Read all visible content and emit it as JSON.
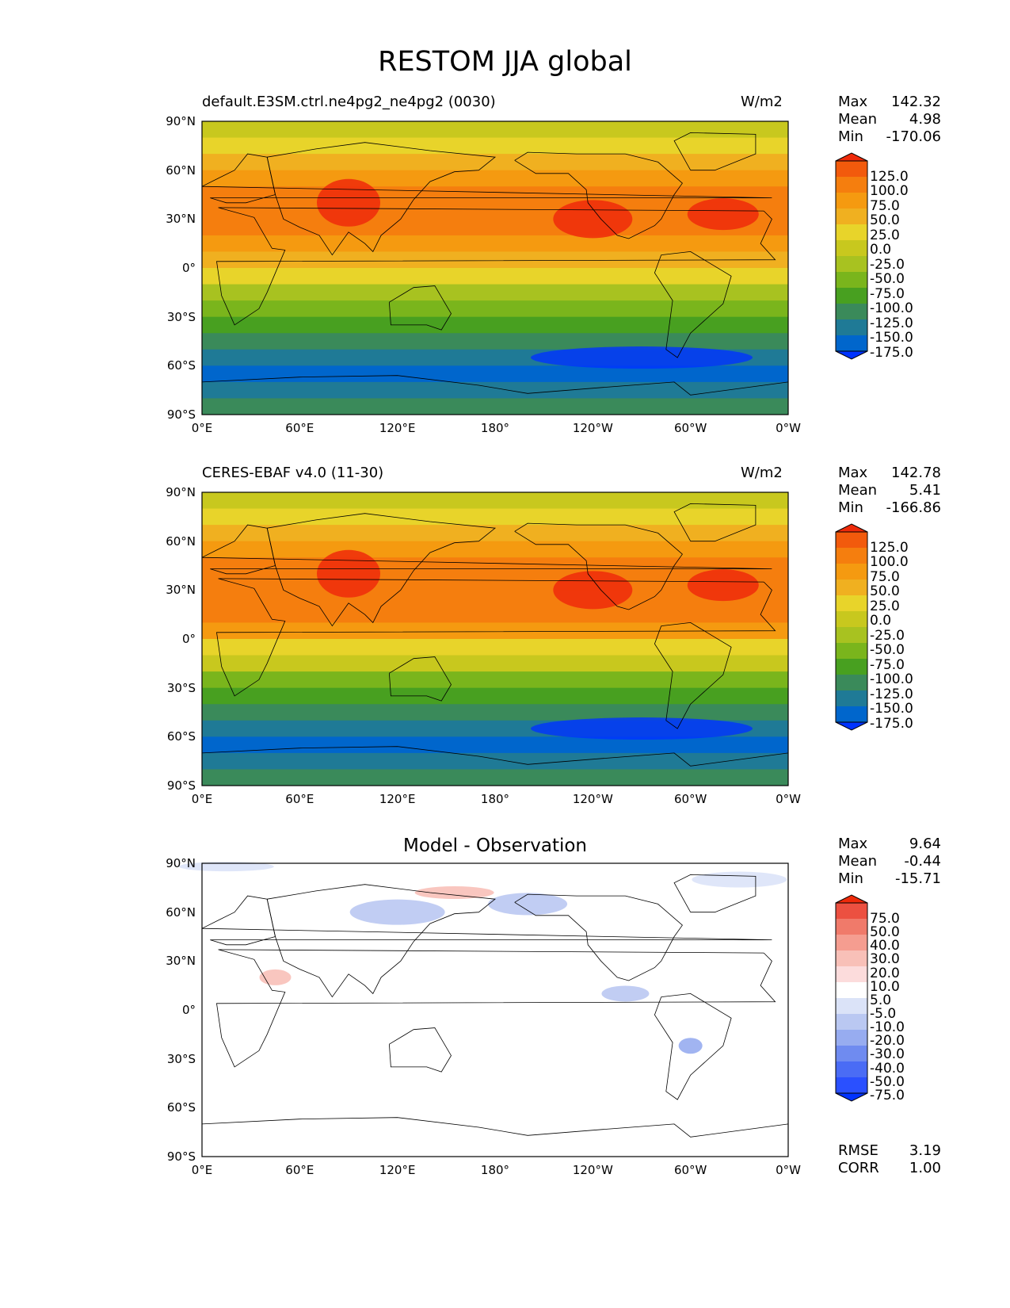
{
  "title": "RESTOM JJA global",
  "x_ticks": [
    "0°E",
    "60°E",
    "120°E",
    "180°",
    "120°W",
    "60°W",
    "0°W"
  ],
  "y_ticks": [
    "90°N",
    "60°N",
    "30°N",
    "0°",
    "30°S",
    "60°S",
    "90°S"
  ],
  "colors": {
    "abs_levels": [
      "#0033ff",
      "#0066cc",
      "#1f7a96",
      "#3a8a5a",
      "#48a020",
      "#7ab51c",
      "#a8c220",
      "#c8c81e",
      "#e8d42a",
      "#f0b020",
      "#f59a10",
      "#f57e0e",
      "#f25a0c",
      "#ee2a0a"
    ],
    "diff_levels": [
      "#0033ff",
      "#2a50ff",
      "#4a6cf5",
      "#6f8bf0",
      "#97acf0",
      "#bac8f2",
      "#dbe3f8",
      "#ffffff",
      "#fcdcdc",
      "#f8c0b8",
      "#f59d90",
      "#f07a6a",
      "#ec5040",
      "#ee2a0a"
    ]
  },
  "chart_data": [
    {
      "type": "heatmap",
      "label_left": "default.E3SM.ctrl.ne4pg2_ne4pg2 (0030)",
      "label_right": "W/m2",
      "stats": [
        {
          "name": "Max",
          "value": "142.32"
        },
        {
          "name": "Mean",
          "value": "4.98"
        },
        {
          "name": "Min",
          "value": "-170.06"
        }
      ],
      "colorbar_ticks": [
        "125.0",
        "100.0",
        "75.0",
        "50.0",
        "25.0",
        "0.0",
        "-25.0",
        "-50.0",
        "-75.0",
        "-100.0",
        "-125.0",
        "-150.0",
        "-175.0"
      ],
      "xlim": [
        0,
        360
      ],
      "ylim": [
        -90,
        90
      ],
      "zonal_profile": {
        "lat": [
          90,
          80,
          70,
          60,
          50,
          40,
          30,
          20,
          10,
          0,
          -10,
          -20,
          -30,
          -40,
          -50,
          -60,
          -70,
          -80,
          -90
        ],
        "value": [
          -20,
          0,
          30,
          60,
          80,
          90,
          90,
          80,
          60,
          30,
          -10,
          -50,
          -80,
          -100,
          -130,
          -160,
          -165,
          -120,
          -110
        ]
      }
    },
    {
      "type": "heatmap",
      "label_left": "CERES-EBAF v4.0 (11-30)",
      "label_right": "W/m2",
      "stats": [
        {
          "name": "Max",
          "value": "142.78"
        },
        {
          "name": "Mean",
          "value": "5.41"
        },
        {
          "name": "Min",
          "value": "-166.86"
        }
      ],
      "colorbar_ticks": [
        "125.0",
        "100.0",
        "75.0",
        "50.0",
        "25.0",
        "0.0",
        "-25.0",
        "-50.0",
        "-75.0",
        "-100.0",
        "-125.0",
        "-150.0",
        "-175.0"
      ],
      "xlim": [
        0,
        360
      ],
      "ylim": [
        -90,
        90
      ],
      "zonal_profile": {
        "lat": [
          90,
          80,
          70,
          60,
          50,
          40,
          30,
          20,
          10,
          0,
          -10,
          -20,
          -30,
          -40,
          -50,
          -60,
          -70,
          -80,
          -90
        ],
        "value": [
          -20,
          0,
          30,
          60,
          85,
          95,
          95,
          85,
          65,
          35,
          -5,
          -45,
          -75,
          -100,
          -130,
          -160,
          -165,
          -120,
          -110
        ]
      }
    },
    {
      "type": "heatmap",
      "title": "Model - Observation",
      "stats": [
        {
          "name": "Max",
          "value": "9.64"
        },
        {
          "name": "Mean",
          "value": "-0.44"
        },
        {
          "name": "Min",
          "value": "-15.71"
        }
      ],
      "extra_stats": [
        {
          "name": "RMSE",
          "value": "3.19"
        },
        {
          "name": "CORR",
          "value": "1.00"
        }
      ],
      "colorbar_ticks": [
        "75.0",
        "50.0",
        "40.0",
        "30.0",
        "20.0",
        "10.0",
        "5.0",
        "-5.0",
        "-10.0",
        "-20.0",
        "-30.0",
        "-40.0",
        "-50.0",
        "-75.0"
      ],
      "xlim": [
        0,
        360
      ],
      "ylim": [
        -90,
        90
      ]
    }
  ]
}
